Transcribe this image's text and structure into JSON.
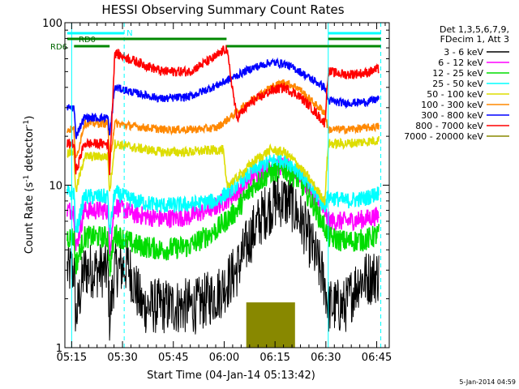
{
  "chart_data": {
    "type": "line",
    "title": "HESSI Observing Summary Count Rates",
    "xlabel": "Start Time (04-Jan-14 05:13:42)",
    "ylabel_main": "Count Rate (s",
    "ylabel_sup1": "-1",
    "ylabel_mid": " detector",
    "ylabel_sup2": "-1",
    "ylabel_end": ")",
    "y_scale": "log",
    "ylim": [
      1,
      100
    ],
    "x_minutes_range": [
      -0.7,
      95
    ],
    "x_tick_labels": [
      {
        "m": 1.3,
        "label": "05:15"
      },
      {
        "m": 16.3,
        "label": "05:30"
      },
      {
        "m": 31.3,
        "label": "05:45"
      },
      {
        "m": 46.3,
        "label": "06:00"
      },
      {
        "m": 61.3,
        "label": "06:15"
      },
      {
        "m": 76.3,
        "label": "06:30"
      },
      {
        "m": 91.3,
        "label": "06:45"
      }
    ],
    "y_tick_labels": [
      {
        "v": 1,
        "label": "1"
      },
      {
        "v": 10,
        "label": "10"
      },
      {
        "v": 100,
        "label": "100"
      }
    ],
    "legend_header": [
      "Det 1,3,5,6,7,9,",
      "FDecim 1, Att 3"
    ],
    "series": [
      {
        "name": "3 - 6 keV",
        "color": "#000000",
        "values": [
          [
            0,
            3.0
          ],
          [
            2,
            3.0
          ],
          [
            2.5,
            1.5
          ],
          [
            5,
            3.0
          ],
          [
            12,
            3.0
          ],
          [
            12.5,
            1.5
          ],
          [
            14,
            3.0
          ],
          [
            18,
            3.2
          ],
          [
            22,
            1.8
          ],
          [
            30,
            1.8
          ],
          [
            38,
            1.8
          ],
          [
            45,
            2.2
          ],
          [
            50,
            3.0
          ],
          [
            54,
            4.8
          ],
          [
            58,
            6.7
          ],
          [
            62,
            8.2
          ],
          [
            66,
            7.8
          ],
          [
            70,
            5.5
          ],
          [
            74,
            3.3
          ],
          [
            76,
            2.5
          ],
          [
            77,
            1.8
          ],
          [
            82,
            1.8
          ],
          [
            86,
            2.6
          ],
          [
            92,
            2.8
          ]
        ]
      },
      {
        "name": "6 - 12 keV",
        "color": "#ff00ff",
        "values": [
          [
            0,
            7.0
          ],
          [
            2,
            7.0
          ],
          [
            2.5,
            4.0
          ],
          [
            5,
            7.0
          ],
          [
            12,
            7.0
          ],
          [
            12.5,
            4.0
          ],
          [
            14,
            7.5
          ],
          [
            20,
            6.6
          ],
          [
            28,
            6.2
          ],
          [
            36,
            6.4
          ],
          [
            44,
            7.4
          ],
          [
            50,
            9.0
          ],
          [
            55,
            11.5
          ],
          [
            60,
            13.0
          ],
          [
            64,
            13.2
          ],
          [
            68,
            12.0
          ],
          [
            72,
            9.0
          ],
          [
            76,
            6.8
          ],
          [
            77,
            6.0
          ],
          [
            82,
            6.0
          ],
          [
            88,
            6.2
          ],
          [
            92,
            6.5
          ]
        ]
      },
      {
        "name": "12 - 25 keV",
        "color": "#00dd00",
        "values": [
          [
            0,
            4.8
          ],
          [
            2,
            4.8
          ],
          [
            2.5,
            3.2
          ],
          [
            5,
            4.8
          ],
          [
            12,
            4.8
          ],
          [
            12.5,
            3.0
          ],
          [
            14,
            5.0
          ],
          [
            20,
            4.3
          ],
          [
            28,
            4.0
          ],
          [
            36,
            4.2
          ],
          [
            44,
            5.3
          ],
          [
            50,
            7.0
          ],
          [
            55,
            10.0
          ],
          [
            60,
            12.0
          ],
          [
            64,
            12.5
          ],
          [
            68,
            11.0
          ],
          [
            72,
            8.0
          ],
          [
            76,
            5.5
          ],
          [
            77,
            4.8
          ],
          [
            82,
            4.5
          ],
          [
            88,
            4.6
          ],
          [
            92,
            5.0
          ]
        ]
      },
      {
        "name": "25 - 50 keV",
        "color": "#00ffff",
        "values": [
          [
            0,
            9.0
          ],
          [
            2,
            9.0
          ],
          [
            2.5,
            5.0
          ],
          [
            5,
            8.5
          ],
          [
            12,
            8.5
          ],
          [
            12.5,
            5.0
          ],
          [
            14,
            9.0
          ],
          [
            20,
            8.0
          ],
          [
            28,
            7.5
          ],
          [
            36,
            7.6
          ],
          [
            44,
            8.0
          ],
          [
            50,
            10.0
          ],
          [
            55,
            12.5
          ],
          [
            60,
            14.0
          ],
          [
            64,
            14.5
          ],
          [
            68,
            12.5
          ],
          [
            72,
            9.5
          ],
          [
            76,
            7.5
          ],
          [
            77,
            8.5
          ],
          [
            82,
            8.0
          ],
          [
            88,
            8.3
          ],
          [
            92,
            9.0
          ]
        ]
      },
      {
        "name": "50 - 100 keV",
        "color": "#dddd00",
        "values": [
          [
            0,
            16.0
          ],
          [
            2,
            16.0
          ],
          [
            2.5,
            9.0
          ],
          [
            5,
            15.0
          ],
          [
            12,
            15.0
          ],
          [
            12.5,
            9.0
          ],
          [
            14,
            18.0
          ],
          [
            20,
            17.0
          ],
          [
            28,
            16.0
          ],
          [
            36,
            16.0
          ],
          [
            44,
            16.5
          ],
          [
            46,
            16.5
          ],
          [
            47,
            10.0
          ],
          [
            50,
            11.0
          ],
          [
            55,
            14.0
          ],
          [
            60,
            16.5
          ],
          [
            64,
            16.0
          ],
          [
            68,
            13.5
          ],
          [
            72,
            10.5
          ],
          [
            76,
            8.0
          ],
          [
            77,
            18.0
          ],
          [
            82,
            18.0
          ],
          [
            88,
            18.5
          ],
          [
            92,
            19.0
          ]
        ]
      },
      {
        "name": "100 - 300 keV",
        "color": "#ff8800",
        "values": [
          [
            0,
            22.0
          ],
          [
            2,
            22.0
          ],
          [
            2.5,
            14.0
          ],
          [
            5,
            24.0
          ],
          [
            12,
            24.0
          ],
          [
            12.5,
            14.0
          ],
          [
            14,
            24.0
          ],
          [
            20,
            23.0
          ],
          [
            28,
            22.0
          ],
          [
            36,
            22.0
          ],
          [
            44,
            22.5
          ],
          [
            48,
            26.0
          ],
          [
            54,
            33.0
          ],
          [
            60,
            40.0
          ],
          [
            64,
            43.0
          ],
          [
            68,
            40.0
          ],
          [
            72,
            33.0
          ],
          [
            76,
            28.0
          ],
          [
            77,
            22.0
          ],
          [
            82,
            22.0
          ],
          [
            88,
            22.5
          ],
          [
            92,
            23.0
          ]
        ]
      },
      {
        "name": "300 - 800 keV",
        "color": "#0000ff",
        "values": [
          [
            0,
            30.0
          ],
          [
            2,
            30.0
          ],
          [
            2.5,
            20.0
          ],
          [
            5,
            26.0
          ],
          [
            12,
            26.0
          ],
          [
            12.5,
            20.0
          ],
          [
            14,
            40.0
          ],
          [
            20,
            37.0
          ],
          [
            28,
            34.0
          ],
          [
            36,
            35.0
          ],
          [
            44,
            41.0
          ],
          [
            48,
            45.0
          ],
          [
            54,
            52.0
          ],
          [
            60,
            57.0
          ],
          [
            64,
            56.0
          ],
          [
            68,
            51.0
          ],
          [
            72,
            45.0
          ],
          [
            76,
            40.0
          ],
          [
            77,
            33.0
          ],
          [
            82,
            32.0
          ],
          [
            88,
            32.5
          ],
          [
            92,
            34.0
          ]
        ]
      },
      {
        "name": "800 - 7000 keV",
        "color": "#ff0000",
        "values": [
          [
            0,
            18.0
          ],
          [
            2,
            18.0
          ],
          [
            2.5,
            12.0
          ],
          [
            5,
            18.0
          ],
          [
            12,
            18.0
          ],
          [
            12.5,
            12.0
          ],
          [
            14,
            65.0
          ],
          [
            20,
            58.0
          ],
          [
            28,
            50.0
          ],
          [
            36,
            50.0
          ],
          [
            44,
            62.0
          ],
          [
            47,
            70.0
          ],
          [
            50,
            26.0
          ],
          [
            54,
            32.0
          ],
          [
            60,
            38.0
          ],
          [
            64,
            40.0
          ],
          [
            68,
            36.0
          ],
          [
            72,
            30.0
          ],
          [
            76,
            24.0
          ],
          [
            77,
            50.0
          ],
          [
            82,
            48.0
          ],
          [
            88,
            49.0
          ],
          [
            92,
            52.0
          ]
        ]
      },
      {
        "name": "7000 - 20000 keV",
        "color": "#888800",
        "values": [
          [
            53,
            1.0
          ],
          [
            53.5,
            1.9
          ],
          [
            55,
            1.0
          ],
          [
            56,
            1.9
          ],
          [
            57,
            1.0
          ],
          [
            58,
            1.9
          ],
          [
            59,
            1.0
          ],
          [
            60,
            1.9
          ],
          [
            61,
            1.0
          ],
          [
            62,
            1.9
          ],
          [
            63,
            1.0
          ],
          [
            64,
            1.9
          ],
          [
            65,
            1.0
          ],
          [
            66,
            1.9
          ],
          [
            67,
            1.0
          ]
        ]
      }
    ],
    "annotations": [
      {
        "text": "N",
        "color": "#00ffff"
      },
      {
        "text": "RD0",
        "color": "#006600"
      },
      {
        "text": "RD6",
        "color": "#006600"
      }
    ]
  },
  "footer_date": "5-Jan-2014 04:59"
}
